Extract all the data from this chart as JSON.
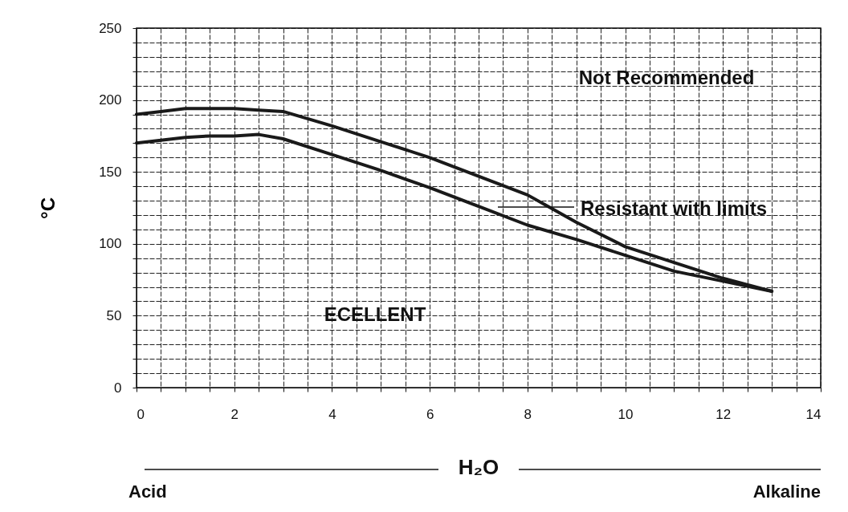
{
  "chart_data": {
    "type": "line",
    "xlabel": "H₂O",
    "ylabel": "°C",
    "x": [
      0,
      0.5,
      1,
      1.5,
      2,
      2.5,
      3,
      4,
      5,
      6,
      7,
      8,
      9,
      10,
      11,
      12,
      13
    ],
    "series": [
      {
        "color": "#1a1a1a",
        "values": [
          190,
          192,
          194,
          194,
          194,
          193,
          192,
          182,
          171,
          160,
          147,
          134,
          115,
          98,
          87,
          76,
          67
        ]
      },
      {
        "color": "#1a1a1a",
        "values": [
          170,
          172,
          174,
          175,
          175,
          176,
          173,
          162,
          151,
          139,
          126,
          113,
          103,
          92,
          81,
          74,
          67
        ]
      }
    ],
    "xlim": [
      0,
      14
    ],
    "ylim": [
      0,
      250
    ],
    "xticks": [
      0,
      {
        "value": 0.5,
        "label": null
      },
      {
        "value": 1,
        "label": null
      },
      {
        "value": 1.5,
        "label": null
      },
      2,
      {
        "value": 2.5,
        "label": null
      },
      {
        "value": 3,
        "label": null
      },
      {
        "value": 3.5,
        "label": null
      },
      4,
      {
        "value": 4.5,
        "label": null
      },
      {
        "value": 5,
        "label": null
      },
      {
        "value": 5.5,
        "label": null
      },
      6,
      {
        "value": 6.5,
        "label": null
      },
      {
        "value": 7,
        "label": null
      },
      {
        "value": 7.5,
        "label": null
      },
      8,
      {
        "value": 8.5,
        "label": null
      },
      {
        "value": 9,
        "label": null
      },
      {
        "value": 9.5,
        "label": null
      },
      10,
      {
        "value": 10.5,
        "label": null
      },
      {
        "value": 11,
        "label": null
      },
      {
        "value": 11.5,
        "label": null
      },
      12,
      {
        "value": 12.5,
        "label": null
      },
      {
        "value": 13,
        "label": null
      },
      {
        "value": 13.5,
        "label": null
      },
      14
    ],
    "yticks": [
      0,
      {
        "value": 10,
        "label": null
      },
      {
        "value": 20,
        "label": null
      },
      {
        "value": 30,
        "label": null
      },
      {
        "value": 40,
        "label": null
      },
      50,
      {
        "value": 60,
        "label": null
      },
      {
        "value": 70,
        "label": null
      },
      {
        "value": 80,
        "label": null
      },
      {
        "value": 90,
        "label": null
      },
      100,
      {
        "value": 110,
        "label": null
      },
      {
        "value": 120,
        "label": null
      },
      {
        "value": 130,
        "label": null
      },
      {
        "value": 140,
        "label": null
      },
      150,
      {
        "value": 160,
        "label": null
      },
      {
        "value": 170,
        "label": null
      },
      {
        "value": 180,
        "label": null
      },
      {
        "value": 190,
        "label": null
      },
      200,
      {
        "value": 210,
        "label": null
      },
      {
        "value": 220,
        "label": null
      },
      {
        "value": 230,
        "label": null
      },
      {
        "value": 240,
        "label": null
      },
      250
    ],
    "grid": true,
    "marker": "none",
    "line_style": "solid",
    "annotations": [
      "Not Recommended",
      "Resistant with limits",
      "ECELLENT",
      "Acid",
      "Alkaline"
    ]
  }
}
